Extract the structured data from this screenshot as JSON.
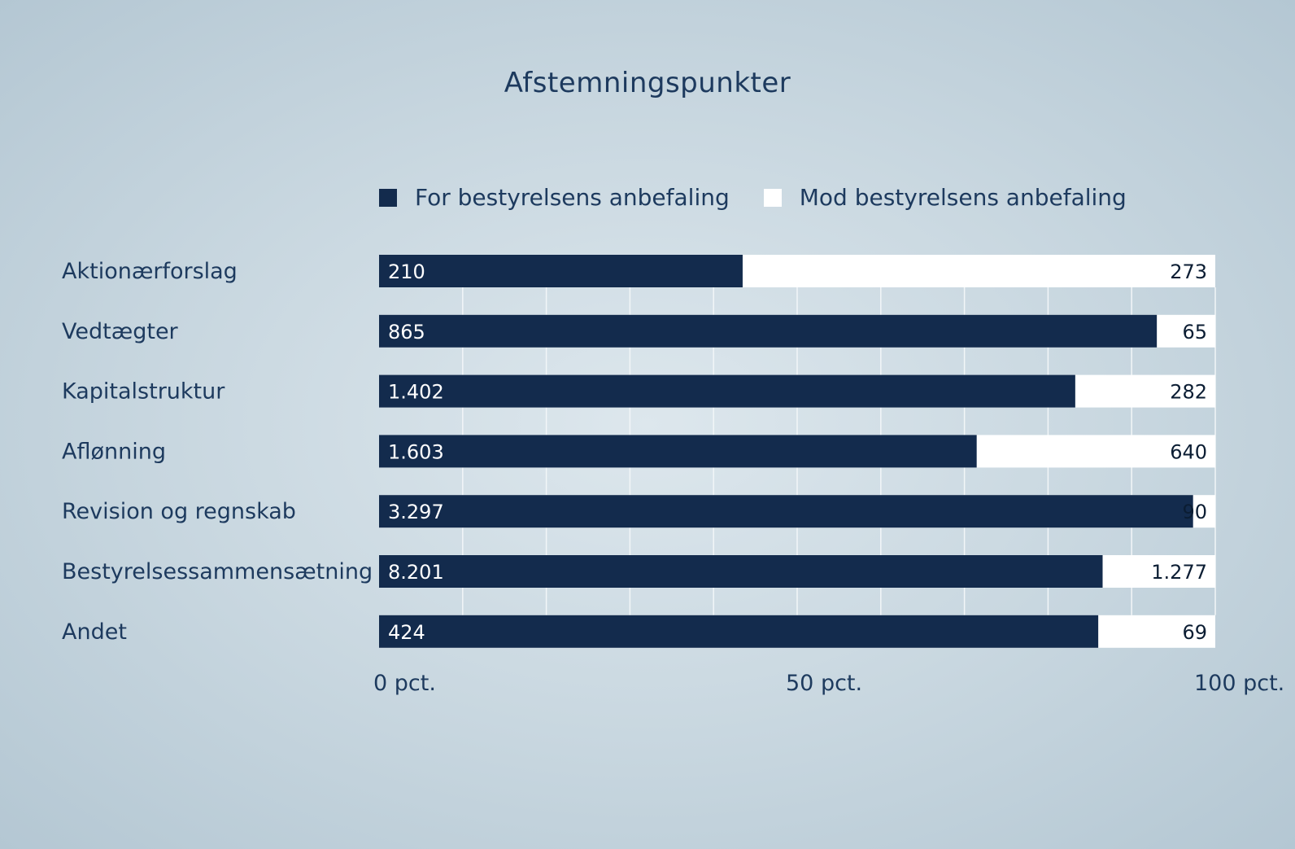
{
  "chart_data": {
    "type": "bar",
    "orientation": "horizontal",
    "stacked": "100%",
    "title": "Afstemningspunkter",
    "categories": [
      "Aktionærforslag",
      "Vedtægter",
      "Kapitalstruktur",
      "Aflønning",
      "Revision og regnskab",
      "Bestyrelsessammensætning",
      "Andet"
    ],
    "series": [
      {
        "name": "For bestyrelsens anbefaling",
        "color": "#132b4d",
        "values": [
          210,
          865,
          1402,
          1603,
          3297,
          8201,
          424
        ],
        "labels": [
          "210",
          "865",
          "1.402",
          "1.603",
          "3.297",
          "8.201",
          "424"
        ]
      },
      {
        "name": "Mod bestyrelsens anbefaling",
        "color": "#ffffff",
        "values": [
          273,
          65,
          282,
          640,
          90,
          1277,
          69
        ],
        "labels": [
          "273",
          "65",
          "282",
          "640",
          "90",
          "1.277",
          "69"
        ]
      }
    ],
    "xticks": [
      "0 pct.",
      "50 pct.",
      "100 pct."
    ],
    "xlim": [
      0,
      100
    ],
    "grid": true,
    "legend": "top"
  }
}
